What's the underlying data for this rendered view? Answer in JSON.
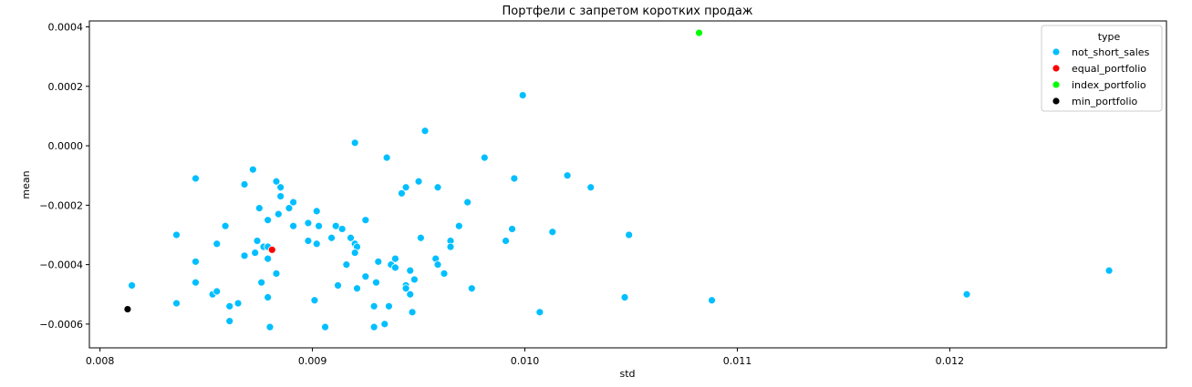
{
  "chart_data": {
    "type": "scatter",
    "title": "Портфели с запретом коротких продаж",
    "xlabel": "std",
    "ylabel": "mean",
    "xlim": [
      0.00795,
      0.01302
    ],
    "ylim": [
      -0.00068,
      0.00042
    ],
    "xticks": [
      0.008,
      0.009,
      0.01,
      0.011,
      0.012
    ],
    "xtick_labels": [
      "0.008",
      "0.009",
      "0.010",
      "0.011",
      "0.012"
    ],
    "yticks": [
      -0.0006,
      -0.0004,
      -0.0002,
      0.0,
      0.0002,
      0.0004
    ],
    "ytick_labels": [
      "−0.0006",
      "−0.0004",
      "−0.0002",
      "0.0000",
      "0.0002",
      "0.0004"
    ],
    "grid": false,
    "legend": {
      "title": "type",
      "placement": "upper right",
      "entries": [
        {
          "label": "not_short_sales",
          "color": "#00bfff"
        },
        {
          "label": "equal_portfolio",
          "color": "#ff0000"
        },
        {
          "label": "index_portfolio",
          "color": "#00ff00"
        },
        {
          "label": "min_portfolio",
          "color": "#000000"
        }
      ]
    },
    "series": [
      {
        "name": "not_short_sales",
        "color": "#00bfff",
        "points": [
          [
            0.00815,
            -0.00047
          ],
          [
            0.00836,
            -0.0003
          ],
          [
            0.00836,
            -0.00053
          ],
          [
            0.00845,
            -0.00011
          ],
          [
            0.00845,
            -0.00039
          ],
          [
            0.00845,
            -0.00046
          ],
          [
            0.00853,
            -0.0005
          ],
          [
            0.00855,
            -0.00033
          ],
          [
            0.00855,
            -0.00049
          ],
          [
            0.00859,
            -0.00027
          ],
          [
            0.00861,
            -0.00054
          ],
          [
            0.00861,
            -0.00059
          ],
          [
            0.00865,
            -0.00053
          ],
          [
            0.00868,
            -0.00013
          ],
          [
            0.00868,
            -0.00037
          ],
          [
            0.00872,
            -8e-05
          ],
          [
            0.00873,
            -0.00036
          ],
          [
            0.00874,
            -0.00032
          ],
          [
            0.00875,
            -0.00021
          ],
          [
            0.00877,
            -0.00034
          ],
          [
            0.00876,
            -0.00046
          ],
          [
            0.00879,
            -0.00034
          ],
          [
            0.00879,
            -0.00025
          ],
          [
            0.00879,
            -0.00051
          ],
          [
            0.00879,
            -0.00038
          ],
          [
            0.0088,
            -0.00061
          ],
          [
            0.00883,
            -0.00012
          ],
          [
            0.00883,
            -0.00043
          ],
          [
            0.00884,
            -0.00023
          ],
          [
            0.00885,
            -0.00014
          ],
          [
            0.00885,
            -0.00017
          ],
          [
            0.00889,
            -0.00021
          ],
          [
            0.00891,
            -0.00027
          ],
          [
            0.00891,
            -0.00019
          ],
          [
            0.00898,
            -0.00026
          ],
          [
            0.00898,
            -0.00032
          ],
          [
            0.00901,
            -0.00052
          ],
          [
            0.00902,
            -0.00022
          ],
          [
            0.00903,
            -0.00027
          ],
          [
            0.00902,
            -0.00033
          ],
          [
            0.00906,
            -0.00061
          ],
          [
            0.00909,
            -0.00031
          ],
          [
            0.00911,
            -0.00027
          ],
          [
            0.00912,
            -0.00047
          ],
          [
            0.00914,
            -0.00028
          ],
          [
            0.00916,
            -0.0004
          ],
          [
            0.00918,
            -0.00031
          ],
          [
            0.0092,
            1e-05
          ],
          [
            0.0092,
            -0.00033
          ],
          [
            0.00921,
            -0.00034
          ],
          [
            0.0092,
            -0.00036
          ],
          [
            0.00921,
            -0.00048
          ],
          [
            0.00925,
            -0.00025
          ],
          [
            0.00925,
            -0.00044
          ],
          [
            0.00929,
            -0.00054
          ],
          [
            0.00929,
            -0.00061
          ],
          [
            0.0093,
            -0.00046
          ],
          [
            0.00931,
            -0.00039
          ],
          [
            0.00934,
            -0.0006
          ],
          [
            0.00935,
            -4e-05
          ],
          [
            0.00936,
            -0.00054
          ],
          [
            0.00937,
            -0.0004
          ],
          [
            0.00939,
            -0.00038
          ],
          [
            0.00939,
            -0.00041
          ],
          [
            0.00942,
            -0.00016
          ],
          [
            0.00944,
            -0.00014
          ],
          [
            0.00944,
            -0.00047
          ],
          [
            0.00944,
            -0.00048
          ],
          [
            0.00946,
            -0.00042
          ],
          [
            0.00946,
            -0.0005
          ],
          [
            0.00947,
            -0.00056
          ],
          [
            0.00948,
            -0.00045
          ],
          [
            0.0095,
            -0.00012
          ],
          [
            0.00951,
            -0.00031
          ],
          [
            0.00953,
            5e-05
          ],
          [
            0.00958,
            -0.00038
          ],
          [
            0.00959,
            -0.00014
          ],
          [
            0.00959,
            -0.0004
          ],
          [
            0.00962,
            -0.00043
          ],
          [
            0.00965,
            -0.00032
          ],
          [
            0.00965,
            -0.00034
          ],
          [
            0.00969,
            -0.00027
          ],
          [
            0.00973,
            -0.00019
          ],
          [
            0.00975,
            -0.00048
          ],
          [
            0.00981,
            -4e-05
          ],
          [
            0.00991,
            -0.00032
          ],
          [
            0.00994,
            -0.00028
          ],
          [
            0.00995,
            -0.00011
          ],
          [
            0.00999,
            0.00017
          ],
          [
            0.01007,
            -0.00056
          ],
          [
            0.01013,
            -0.00029
          ],
          [
            0.0102,
            -0.0001
          ],
          [
            0.01031,
            -0.00014
          ],
          [
            0.01047,
            -0.00051
          ],
          [
            0.01049,
            -0.0003
          ],
          [
            0.01088,
            -0.00052
          ],
          [
            0.01208,
            -0.0005
          ],
          [
            0.01275,
            -0.00042
          ]
        ]
      },
      {
        "name": "equal_portfolio",
        "color": "#ff0000",
        "points": [
          [
            0.00881,
            -0.00035
          ]
        ]
      },
      {
        "name": "index_portfolio",
        "color": "#00ff00",
        "points": [
          [
            0.01082,
            0.00038
          ]
        ]
      },
      {
        "name": "min_portfolio",
        "color": "#000000",
        "points": [
          [
            0.00813,
            -0.00055
          ]
        ]
      }
    ]
  }
}
